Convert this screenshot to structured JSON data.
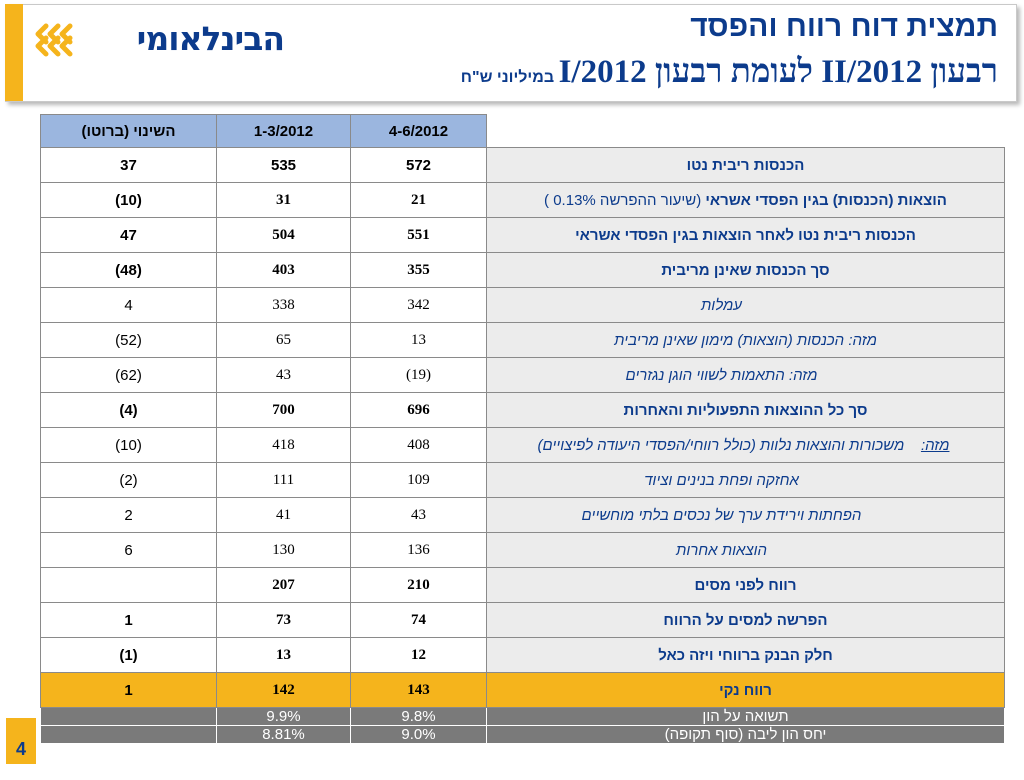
{
  "header": {
    "logo_text": "הבינלאומי",
    "title_line1": "תמצית דוח רווח והפסד",
    "title_line2_main": "רבעון II/2012 לעומת רבעון I/2012",
    "title_line2_unit": "במיליוני ש\"ח"
  },
  "colors": {
    "accent": "#f5b41c",
    "brand_blue": "#0c3b8c",
    "header_cell": "#9bb6df",
    "label_bg": "#ececec"
  },
  "table": {
    "columns": [
      "השינוי (ברוטו)",
      "1-3/2012",
      "4-6/2012"
    ],
    "rows": [
      {
        "label": "הכנסות ריבית נטו",
        "change": "37",
        "q1": "535",
        "q2": "572"
      },
      {
        "label": "הוצאות (הכנסות) בגין הפסדי אשראי",
        "label_note": "(שיעור ההפרשה 0.13% )",
        "change": "(10)",
        "q1": "31",
        "q2": "21"
      },
      {
        "label": "הכנסות ריבית נטו לאחר הוצאות בגין הפסדי אשראי",
        "change": "47",
        "q1": "504",
        "q2": "551"
      },
      {
        "label": "סך הכנסות שאינן מריבית",
        "change": "(48)",
        "q1": "403",
        "q2": "355"
      },
      {
        "label": "עמלות",
        "change": "4",
        "q1": "338",
        "q2": "342"
      },
      {
        "label": "מזה: הכנסות (הוצאות) מימון שאינן מריבית",
        "change": "(52)",
        "q1": "65",
        "q2": "13"
      },
      {
        "label": "מזה: התאמות לשווי הוגן נגזרים",
        "change": "(62)",
        "q1": "43",
        "q2": "(19)"
      },
      {
        "label": "סך כל ההוצאות התפעוליות והאחרות",
        "change": "(4)",
        "q1": "700",
        "q2": "696"
      },
      {
        "label_prefix": "מזה:",
        "label": "משכורות והוצאות נלוות (כולל רווחי/הפסדי היעודה לפיצויים)",
        "change": "(10)",
        "q1": "418",
        "q2": "408"
      },
      {
        "label": "אחזקה ופחת בנינים וציוד",
        "change": "(2)",
        "q1": "111",
        "q2": "109"
      },
      {
        "label": "הפחתות וירידת ערך של נכסים בלתי מוחשיים",
        "change": "2",
        "q1": "41",
        "q2": "43"
      },
      {
        "label": "הוצאות אחרות",
        "change": "6",
        "q1": "130",
        "q2": "136"
      },
      {
        "label": "רווח לפני מסים",
        "change": "",
        "q1": "207",
        "q2": "210"
      },
      {
        "label": "הפרשה למסים על הרווח",
        "change": "1",
        "q1": "73",
        "q2": "74"
      },
      {
        "label": "חלק הבנק ברווחי ויזה כאל",
        "change": "(1)",
        "q1": "13",
        "q2": "12"
      },
      {
        "label": "רווח נקי",
        "change": "1",
        "q1": "142",
        "q2": "143"
      }
    ],
    "ratios": [
      {
        "label": "תשואה על הון",
        "change": "",
        "q1": "9.9%",
        "q2": "9.8%"
      },
      {
        "label": "יחס הון ליבה  (סוף תקופה)",
        "change": "",
        "q1": "8.81%",
        "q2": "9.0%"
      }
    ]
  },
  "footer": {
    "page_number": "4"
  }
}
